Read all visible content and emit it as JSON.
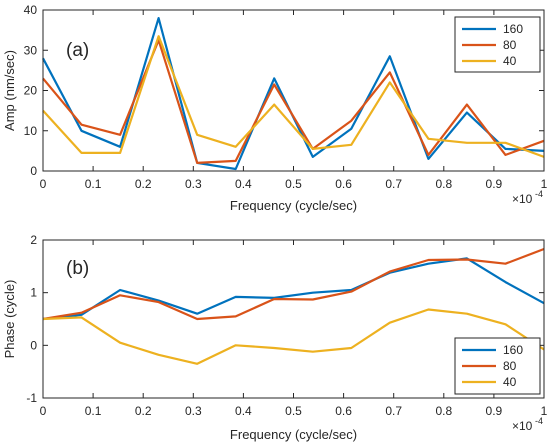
{
  "chart_data": [
    {
      "type": "line",
      "panel_label": "(a)",
      "xlabel": "Frequency (cycle/sec)",
      "ylabel": "Amp (nm/sec)",
      "x_exponent_label": "×10",
      "x_exponent_power": "-4",
      "xlim": [
        0,
        1
      ],
      "ylim": [
        0,
        40
      ],
      "xticks": [
        0,
        0.1,
        0.2,
        0.3,
        0.4,
        0.5,
        0.6,
        0.7,
        0.8,
        0.9,
        1
      ],
      "xtick_labels": [
        "0",
        "0.1",
        "0.2",
        "0.3",
        "0.4",
        "0.5",
        "0.6",
        "0.7",
        "0.8",
        "0.9",
        "1"
      ],
      "yticks": [
        0,
        10,
        20,
        30,
        40
      ],
      "ytick_labels": [
        "0",
        "10",
        "20",
        "30",
        "40"
      ],
      "grid": false,
      "legend_position": "top-right",
      "x": [
        0,
        0.0769,
        0.1538,
        0.2308,
        0.3077,
        0.3846,
        0.4615,
        0.5385,
        0.6154,
        0.6923,
        0.7692,
        0.8462,
        0.9231,
        1.0
      ],
      "series": [
        {
          "name": "160",
          "color": "#0072BD",
          "values": [
            28,
            10,
            6,
            38,
            2,
            0.5,
            23,
            3.5,
            10.5,
            28.5,
            3,
            14.5,
            5.5,
            5
          ]
        },
        {
          "name": "80",
          "color": "#D95319",
          "values": [
            23,
            11.5,
            9,
            32.5,
            2,
            2.5,
            21.5,
            5.5,
            12.5,
            24.5,
            4,
            16.5,
            4,
            7.5
          ]
        },
        {
          "name": "40",
          "color": "#EDB120",
          "values": [
            15,
            4.5,
            4.5,
            33.5,
            9,
            6,
            16.5,
            5.5,
            6.5,
            22,
            8,
            7,
            7,
            3.5
          ]
        }
      ]
    },
    {
      "type": "line",
      "panel_label": "(b)",
      "xlabel": "Frequency (cycle/sec)",
      "ylabel": "Phase (cycle)",
      "x_exponent_label": "×10",
      "x_exponent_power": "-4",
      "xlim": [
        0,
        1
      ],
      "ylim": [
        -1,
        2
      ],
      "xticks": [
        0,
        0.1,
        0.2,
        0.3,
        0.4,
        0.5,
        0.6,
        0.7,
        0.8,
        0.9,
        1
      ],
      "xtick_labels": [
        "0",
        "0.1",
        "0.2",
        "0.3",
        "0.4",
        "0.5",
        "0.6",
        "0.7",
        "0.8",
        "0.9",
        "1"
      ],
      "yticks": [
        -1,
        0,
        1,
        2
      ],
      "ytick_labels": [
        "-1",
        "0",
        "1",
        "2"
      ],
      "grid": false,
      "legend_position": "bottom-right",
      "x": [
        0,
        0.0769,
        0.1538,
        0.2308,
        0.3077,
        0.3846,
        0.4615,
        0.5385,
        0.6154,
        0.6923,
        0.7692,
        0.8462,
        0.9231,
        1.0
      ],
      "series": [
        {
          "name": "160",
          "color": "#0072BD",
          "values": [
            0.5,
            0.58,
            1.05,
            0.85,
            0.6,
            0.92,
            0.9,
            1.0,
            1.05,
            1.38,
            1.55,
            1.65,
            1.2,
            0.8
          ]
        },
        {
          "name": "80",
          "color": "#D95319",
          "values": [
            0.5,
            0.62,
            0.95,
            0.82,
            0.5,
            0.55,
            0.88,
            0.87,
            1.02,
            1.4,
            1.62,
            1.63,
            1.55,
            1.83
          ]
        },
        {
          "name": "40",
          "color": "#EDB120",
          "values": [
            0.5,
            0.53,
            0.05,
            -0.18,
            -0.35,
            0.0,
            -0.05,
            -0.12,
            -0.05,
            0.43,
            0.68,
            0.6,
            0.4,
            -0.08
          ]
        }
      ]
    }
  ]
}
